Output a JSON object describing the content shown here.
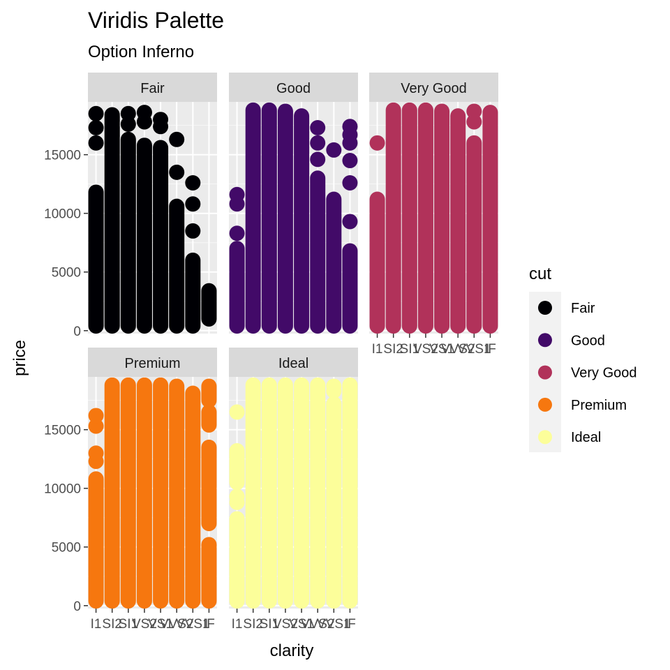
{
  "chart_data": {
    "type": "scatter",
    "title": "Viridis Palette",
    "subtitle": "Option Inferno",
    "xlabel": "clarity",
    "ylabel": "price",
    "x_categories": [
      "I1",
      "SI2",
      "SI1",
      "VS2",
      "VS1",
      "VVS2",
      "VVS1",
      "IF"
    ],
    "y_ticks": [
      0,
      5000,
      10000,
      15000
    ],
    "y_tick_labels": [
      "0",
      "5000",
      "10000",
      "15000"
    ],
    "ylim": [
      -250,
      19500
    ],
    "grid": true,
    "legend": {
      "title": "cut",
      "placement": "right",
      "entries": [
        "Fair",
        "Good",
        "Very Good",
        "Premium",
        "Ideal"
      ]
    },
    "facets": [
      {
        "name": "Fair",
        "color": "#000004",
        "series": [
          {
            "clarity": "I1",
            "ranges": [
              [
                400,
                11800
              ]
            ],
            "points": [
              16000,
              17300,
              18500
            ]
          },
          {
            "clarity": "SI2",
            "ranges": [
              [
                400,
                18400
              ]
            ],
            "points": []
          },
          {
            "clarity": "SI1",
            "ranges": [
              [
                400,
                16300
              ]
            ],
            "points": [
              17600,
              18500
            ]
          },
          {
            "clarity": "VS2",
            "ranges": [
              [
                400,
                15800
              ]
            ],
            "points": [
              17800,
              18600
            ]
          },
          {
            "clarity": "VS1",
            "ranges": [
              [
                400,
                15600
              ]
            ],
            "points": [
              17400,
              18000
            ]
          },
          {
            "clarity": "VVS2",
            "ranges": [
              [
                400,
                10600
              ]
            ],
            "points": [
              13500,
              16300
            ]
          },
          {
            "clarity": "VVS1",
            "ranges": [
              [
                400,
                6000
              ]
            ],
            "points": [
              8500,
              10800,
              12600
            ]
          },
          {
            "clarity": "IF",
            "ranges": [
              [
                1000,
                3400
              ]
            ],
            "points": []
          }
        ]
      },
      {
        "name": "Good",
        "color": "#420A68",
        "series": [
          {
            "clarity": "I1",
            "ranges": [
              [
                400,
                7000
              ]
            ],
            "points": [
              8300,
              10800,
              11600
            ]
          },
          {
            "clarity": "SI2",
            "ranges": [
              [
                400,
                18800
              ]
            ],
            "points": []
          },
          {
            "clarity": "SI1",
            "ranges": [
              [
                400,
                18800
              ]
            ],
            "points": []
          },
          {
            "clarity": "VS2",
            "ranges": [
              [
                400,
                18700
              ]
            ],
            "points": []
          },
          {
            "clarity": "VS1",
            "ranges": [
              [
                400,
                18300
              ]
            ],
            "points": []
          },
          {
            "clarity": "VVS2",
            "ranges": [
              [
                400,
                13000
              ]
            ],
            "points": [
              14600,
              16000,
              17300
            ]
          },
          {
            "clarity": "VVS1",
            "ranges": [
              [
                400,
                11200
              ]
            ],
            "points": [
              15400
            ]
          },
          {
            "clarity": "IF",
            "ranges": [
              [
                400,
                6800
              ]
            ],
            "points": [
              9300,
              12600,
              14500,
              16000,
              16700,
              17400
            ]
          }
        ]
      },
      {
        "name": "Very Good",
        "color": "#B1325A",
        "series": [
          {
            "clarity": "I1",
            "ranges": [
              [
                400,
                11200
              ]
            ],
            "points": [
              16000
            ]
          },
          {
            "clarity": "SI2",
            "ranges": [
              [
                400,
                18800
              ]
            ],
            "points": []
          },
          {
            "clarity": "SI1",
            "ranges": [
              [
                400,
                18800
              ]
            ],
            "points": []
          },
          {
            "clarity": "VS2",
            "ranges": [
              [
                400,
                18800
              ]
            ],
            "points": []
          },
          {
            "clarity": "VS1",
            "ranges": [
              [
                400,
                18700
              ]
            ],
            "points": []
          },
          {
            "clarity": "VVS2",
            "ranges": [
              [
                400,
                18300
              ]
            ],
            "points": []
          },
          {
            "clarity": "VVS1",
            "ranges": [
              [
                400,
                16000
              ]
            ],
            "points": [
              17800,
              18700
            ]
          },
          {
            "clarity": "IF",
            "ranges": [
              [
                400,
                18600
              ]
            ],
            "points": []
          }
        ]
      },
      {
        "name": "Premium",
        "color": "#F6770F",
        "series": [
          {
            "clarity": "I1",
            "ranges": [
              [
                400,
                10800
              ]
            ],
            "points": [
              12300,
              13000,
              15300,
              16200
            ]
          },
          {
            "clarity": "SI2",
            "ranges": [
              [
                400,
                18800
              ]
            ],
            "points": []
          },
          {
            "clarity": "SI1",
            "ranges": [
              [
                400,
                18800
              ]
            ],
            "points": []
          },
          {
            "clarity": "VS2",
            "ranges": [
              [
                400,
                18800
              ]
            ],
            "points": []
          },
          {
            "clarity": "VS1",
            "ranges": [
              [
                400,
                18800
              ]
            ],
            "points": []
          },
          {
            "clarity": "VVS2",
            "ranges": [
              [
                400,
                18700
              ]
            ],
            "points": []
          },
          {
            "clarity": "VVS1",
            "ranges": [
              [
                400,
                18100
              ]
            ],
            "points": []
          },
          {
            "clarity": "IF",
            "ranges": [
              [
                400,
                5200
              ],
              [
                7000,
                13500
              ],
              [
                15400,
                16500
              ],
              [
                17500,
                18700
              ]
            ],
            "points": []
          }
        ]
      },
      {
        "name": "Ideal",
        "color": "#FCFE9A",
        "series": [
          {
            "clarity": "I1",
            "ranges": [
              [
                400,
                7400
              ],
              [
                10500,
                13200
              ]
            ],
            "points": [
              8800,
              9300,
              16500
            ]
          },
          {
            "clarity": "SI2",
            "ranges": [
              [
                400,
                18800
              ]
            ],
            "points": []
          },
          {
            "clarity": "SI1",
            "ranges": [
              [
                400,
                18800
              ]
            ],
            "points": []
          },
          {
            "clarity": "VS2",
            "ranges": [
              [
                400,
                18800
              ]
            ],
            "points": []
          },
          {
            "clarity": "VS1",
            "ranges": [
              [
                400,
                18800
              ]
            ],
            "points": []
          },
          {
            "clarity": "VVS2",
            "ranges": [
              [
                400,
                18800
              ]
            ],
            "points": []
          },
          {
            "clarity": "VVS1",
            "ranges": [
              [
                400,
                17200
              ]
            ],
            "points": [
              18300,
              18700
            ]
          },
          {
            "clarity": "IF",
            "ranges": [
              [
                400,
                18800
              ]
            ],
            "points": []
          }
        ]
      }
    ]
  }
}
